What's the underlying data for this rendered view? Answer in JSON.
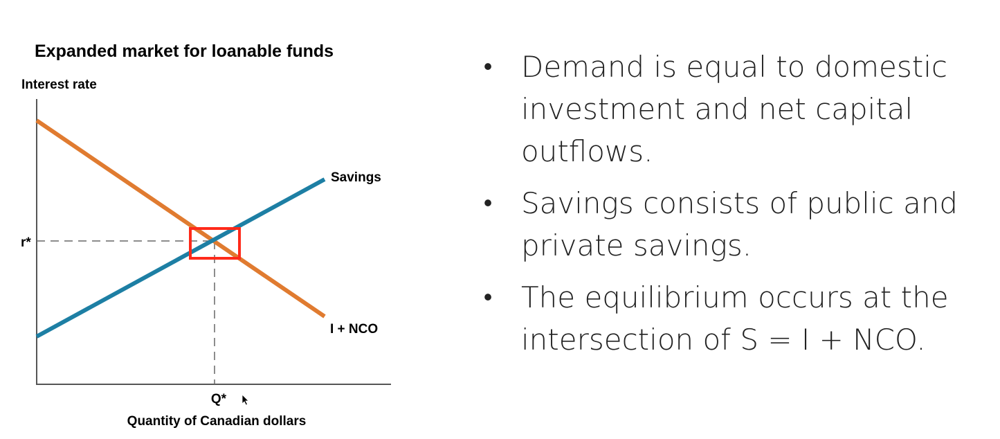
{
  "chart_data": {
    "type": "line",
    "title": "Expanded market for loanable funds",
    "ylabel": "Interest rate",
    "xlabel": "Quantity of Canadian dollars",
    "x_tick_labels": [
      "Q*"
    ],
    "y_tick_labels": [
      "r*"
    ],
    "series": [
      {
        "name": "Savings",
        "color": "#1d7fa4",
        "role": "supply",
        "slope": "upward"
      },
      {
        "name": "I + NCO",
        "color": "#e07b30",
        "role": "demand",
        "slope": "downward"
      }
    ],
    "equilibrium": {
      "x_label": "Q*",
      "y_label": "r*",
      "highlight_color": "#ff2a1a"
    },
    "guides": "dashed",
    "grid": false
  },
  "bullets": [
    "Demand is equal to domestic investment and net capital outflows.",
    "Savings consists of public and private savings.",
    "The equilibrium occurs at the intersection of S = I + NCO."
  ],
  "bullet_symbol": "•"
}
